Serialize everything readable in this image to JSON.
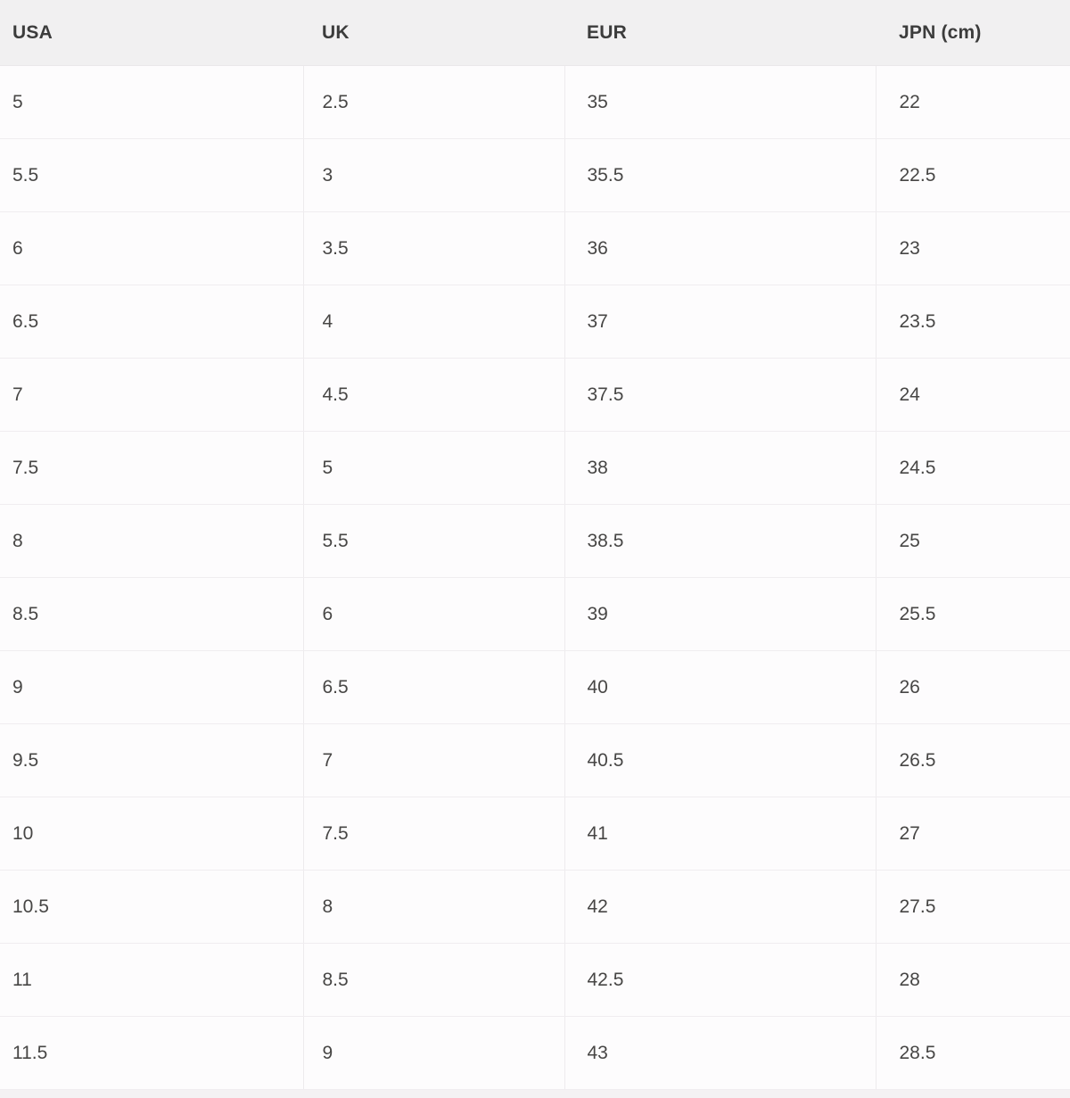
{
  "chart_data": {
    "type": "table",
    "columns": [
      "USA",
      "UK",
      "EUR",
      "JPN (cm)"
    ],
    "rows": [
      [
        "5",
        "2.5",
        "35",
        "22"
      ],
      [
        "5.5",
        "3",
        "35.5",
        "22.5"
      ],
      [
        "6",
        "3.5",
        "36",
        "23"
      ],
      [
        "6.5",
        "4",
        "37",
        "23.5"
      ],
      [
        "7",
        "4.5",
        "37.5",
        "24"
      ],
      [
        "7.5",
        "5",
        "38",
        "24.5"
      ],
      [
        "8",
        "5.5",
        "38.5",
        "25"
      ],
      [
        "8.5",
        "6",
        "39",
        "25.5"
      ],
      [
        "9",
        "6.5",
        "40",
        "26"
      ],
      [
        "9.5",
        "7",
        "40.5",
        "26.5"
      ],
      [
        "10",
        "7.5",
        "41",
        "27"
      ],
      [
        "10.5",
        "8",
        "42",
        "27.5"
      ],
      [
        "11",
        "8.5",
        "42.5",
        "28"
      ],
      [
        "11.5",
        "9",
        "43",
        "28.5"
      ]
    ],
    "layout": {
      "grid": "horizontal and vertical light separators",
      "header_position": "top"
    }
  },
  "colors": {
    "header_background": "#f1f0f1",
    "body_background": "#fdfcfd",
    "row_separator": "#f0edf0",
    "column_separator": "#edebed",
    "header_text": "#3c3c3c",
    "cell_text": "#474645",
    "bottom_sliver": "#f4f2f3"
  }
}
